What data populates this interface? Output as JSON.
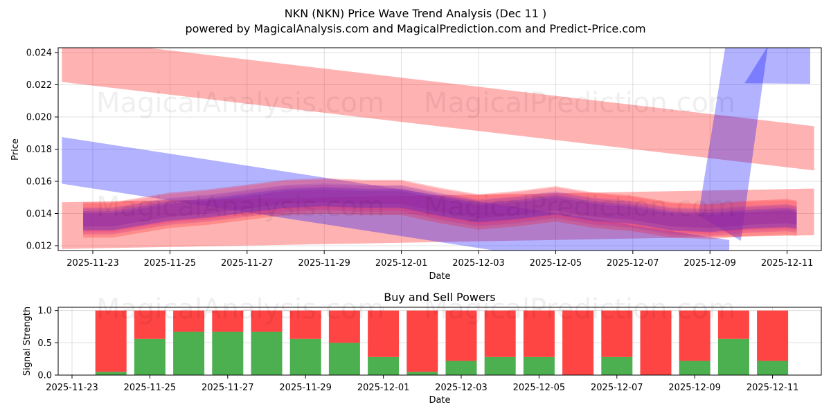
{
  "chart_data": [
    {
      "type": "area",
      "title": "NKN (NKN) Price Wave Trend Analysis (Dec 11 )",
      "subtitle": "powered by MagicalAnalysis.com and MagicalPrediction.com and Predict-Price.com",
      "xlabel": "Date",
      "ylabel": "Price",
      "xlim": [
        "2025-11-22.1",
        "2025-12-11.5"
      ],
      "ylim": [
        0.0117,
        0.0243
      ],
      "x_ticks": [
        "2025-11-23",
        "2025-11-25",
        "2025-11-27",
        "2025-11-29",
        "2025-12-01",
        "2025-12-03",
        "2025-12-05",
        "2025-12-07",
        "2025-12-09",
        "2025-12-11"
      ],
      "y_ticks": [
        "0.012",
        "0.014",
        "0.016",
        "0.018",
        "0.020",
        "0.022",
        "0.024"
      ],
      "grid": true,
      "watermarks": [
        "MagicalAnalysis.com",
        "MagicalPrediction.com"
      ],
      "bands": [
        {
          "name": "upper red band",
          "color": "#ff0000",
          "start": [
            -0.8,
            0.02355
          ],
          "end": [
            18.7,
            0.01805
          ],
          "width": 0.00275
        },
        {
          "name": "lower red band",
          "color": "#ff0000",
          "start": [
            -0.8,
            0.01325
          ],
          "end": [
            18.7,
            0.0141
          ],
          "width": 0.0029
        },
        {
          "name": "descending blue band",
          "color": "#0000ff",
          "start": [
            -0.8,
            0.0173
          ],
          "end": [
            16.5,
            0.0109
          ],
          "width": 0.0029
        },
        {
          "name": "rising blue band",
          "color": "#0000ff",
          "points": [
            [
              15.7,
              0.0139
            ],
            [
              16.4,
              0.0244
            ]
          ],
          "width_days": 1.1,
          "tail": [
            [
              16.9,
              0.0221
            ],
            [
              18.6,
              0.0221
            ],
            [
              18.6,
              0.0243
            ]
          ]
        }
      ],
      "wave_center": {
        "x": [
          -0.25,
          0.5,
          1,
          2,
          3,
          4,
          5,
          6,
          7,
          8,
          9,
          10,
          11,
          12,
          13,
          14,
          15,
          16,
          17,
          18,
          18.25
        ],
        "y": [
          0.0136,
          0.0136,
          0.0138,
          0.0142,
          0.0144,
          0.0147,
          0.015,
          0.0151,
          0.015,
          0.015,
          0.0145,
          0.0141,
          0.0143,
          0.0146,
          0.0142,
          0.014,
          0.0136,
          0.0135,
          0.0137,
          0.0138,
          0.0137
        ]
      }
    },
    {
      "type": "bar",
      "title": "Buy and Sell Powers",
      "xlabel": "Date",
      "ylabel": "Signal Strength",
      "ylim": [
        0,
        1.05
      ],
      "x_ticks": [
        "2025-11-23",
        "2025-11-25",
        "2025-11-27",
        "2025-11-29",
        "2025-12-01",
        "2025-12-03",
        "2025-12-05",
        "2025-12-07",
        "2025-12-09",
        "2025-12-11"
      ],
      "y_ticks": [
        "0.0",
        "0.5",
        "1.0"
      ],
      "categories": [
        "2025-11-24",
        "2025-11-25",
        "2025-11-26",
        "2025-11-27",
        "2025-11-28",
        "2025-11-29",
        "2025-11-30",
        "2025-12-01",
        "2025-12-02",
        "2025-12-03",
        "2025-12-04",
        "2025-12-05",
        "2025-12-06",
        "2025-12-07",
        "2025-12-08",
        "2025-12-09",
        "2025-12-10",
        "2025-12-11"
      ],
      "series": [
        {
          "name": "Buy",
          "color": "#4caf50",
          "values": [
            0.05,
            0.56,
            0.67,
            0.67,
            0.67,
            0.56,
            0.5,
            0.28,
            0.05,
            0.22,
            0.28,
            0.28,
            0.0,
            0.28,
            0.0,
            0.22,
            0.56,
            0.22
          ]
        },
        {
          "name": "Sell",
          "color": "#ff4444",
          "values": [
            0.95,
            0.44,
            0.33,
            0.33,
            0.33,
            0.44,
            0.5,
            0.72,
            0.95,
            0.78,
            0.72,
            0.72,
            1.0,
            0.72,
            1.0,
            0.78,
            0.44,
            0.78
          ]
        }
      ]
    }
  ]
}
